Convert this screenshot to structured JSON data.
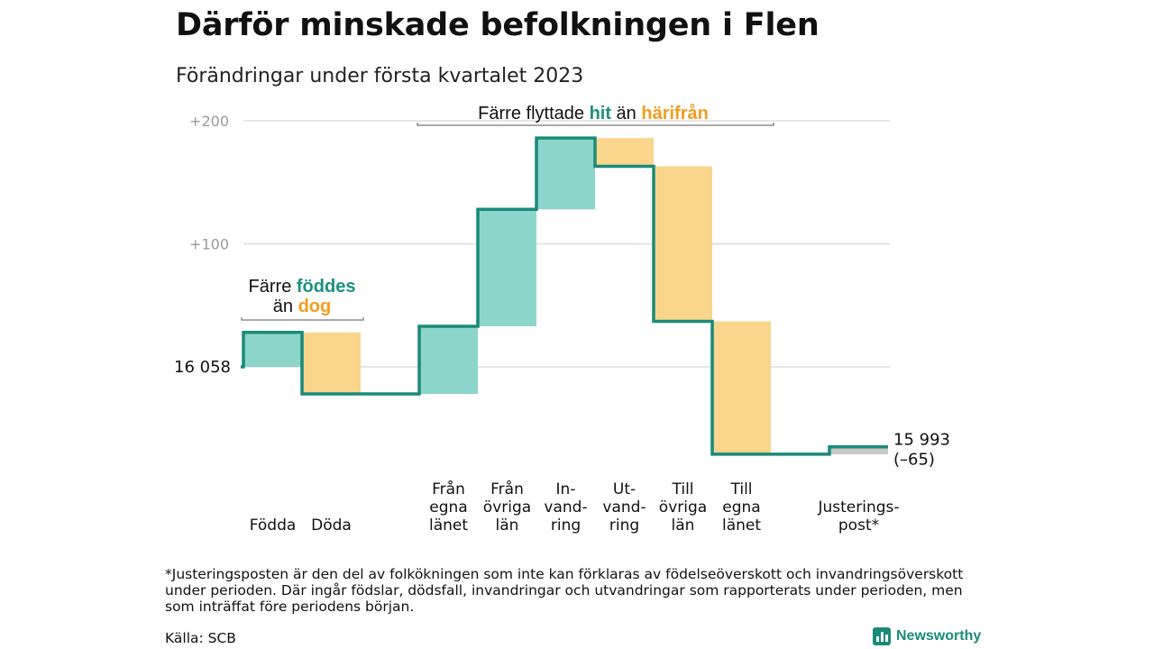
{
  "title": "Därför minskade befolkningen i Flen",
  "subtitle": "Förändringar under första kvartalet 2023",
  "footnote": "*Justeringsposten är den del av folkökningen som inte kan förklaras av födelseöverskott och invandringsöverskott under perioden. Där ingår födslar, dödsfall, invandringar och utvandringar som rapporterats under perioden, men som inträffat före periodens början.",
  "source": "Källa: SCB",
  "brand": "Newsworthy",
  "colors": {
    "increase": "#8dd5ca",
    "decrease": "#fad58c",
    "adjustment": "#c8c8c8",
    "line": "#1a8a7a",
    "grid": "#dddddd",
    "accent_green": "#1a9080",
    "accent_orange": "#f29c1f"
  },
  "chart_data": {
    "type": "waterfall",
    "baseline": 16058,
    "start_label": "16 058",
    "end_label": "15 993",
    "end_change_label": "(–65)",
    "y_tick_labels": [
      "+200",
      "+100"
    ],
    "y_ticks": [
      200,
      100,
      0
    ],
    "ylim": [
      -80,
      200
    ],
    "steps": [
      {
        "category": [
          "Födda"
        ],
        "change": 28,
        "kind": "increase"
      },
      {
        "category": [
          "Döda"
        ],
        "change": -50,
        "kind": "decrease"
      },
      {
        "category": [],
        "change": 0,
        "kind": "none"
      },
      {
        "category": [
          "Från",
          "egna",
          "länet"
        ],
        "change": 55,
        "kind": "increase"
      },
      {
        "category": [
          "Från",
          "övriga",
          "län"
        ],
        "change": 95,
        "kind": "increase"
      },
      {
        "category": [
          "In-",
          "vand-",
          "ring"
        ],
        "change": 58,
        "kind": "increase"
      },
      {
        "category": [
          "Ut-",
          "vand-",
          "ring"
        ],
        "change": -23,
        "kind": "decrease"
      },
      {
        "category": [
          "Till",
          "övriga",
          "län"
        ],
        "change": -126,
        "kind": "decrease"
      },
      {
        "category": [
          "Till",
          "egna",
          "länet"
        ],
        "change": -108,
        "kind": "decrease"
      },
      {
        "category": [],
        "change": 0,
        "kind": "none"
      },
      {
        "category": [
          "Justerings-",
          "post*"
        ],
        "change": 6,
        "kind": "adjustment"
      }
    ],
    "annotations": [
      {
        "parts": [
          {
            "text": "Färre ",
            "color": "plain"
          },
          {
            "text": "föddes",
            "color": "green"
          }
        ],
        "parts2": [
          {
            "text": "än ",
            "color": "plain"
          },
          {
            "text": "dog",
            "color": "orange"
          }
        ],
        "from_step": 0,
        "to_step": 1
      },
      {
        "parts": [
          {
            "text": "Färre flyttade ",
            "color": "plain"
          },
          {
            "text": "hit",
            "color": "green"
          },
          {
            "text": " än ",
            "color": "plain"
          },
          {
            "text": "härifrån",
            "color": "orange"
          }
        ],
        "parts2": [],
        "from_step": 3,
        "to_step": 8
      }
    ]
  }
}
